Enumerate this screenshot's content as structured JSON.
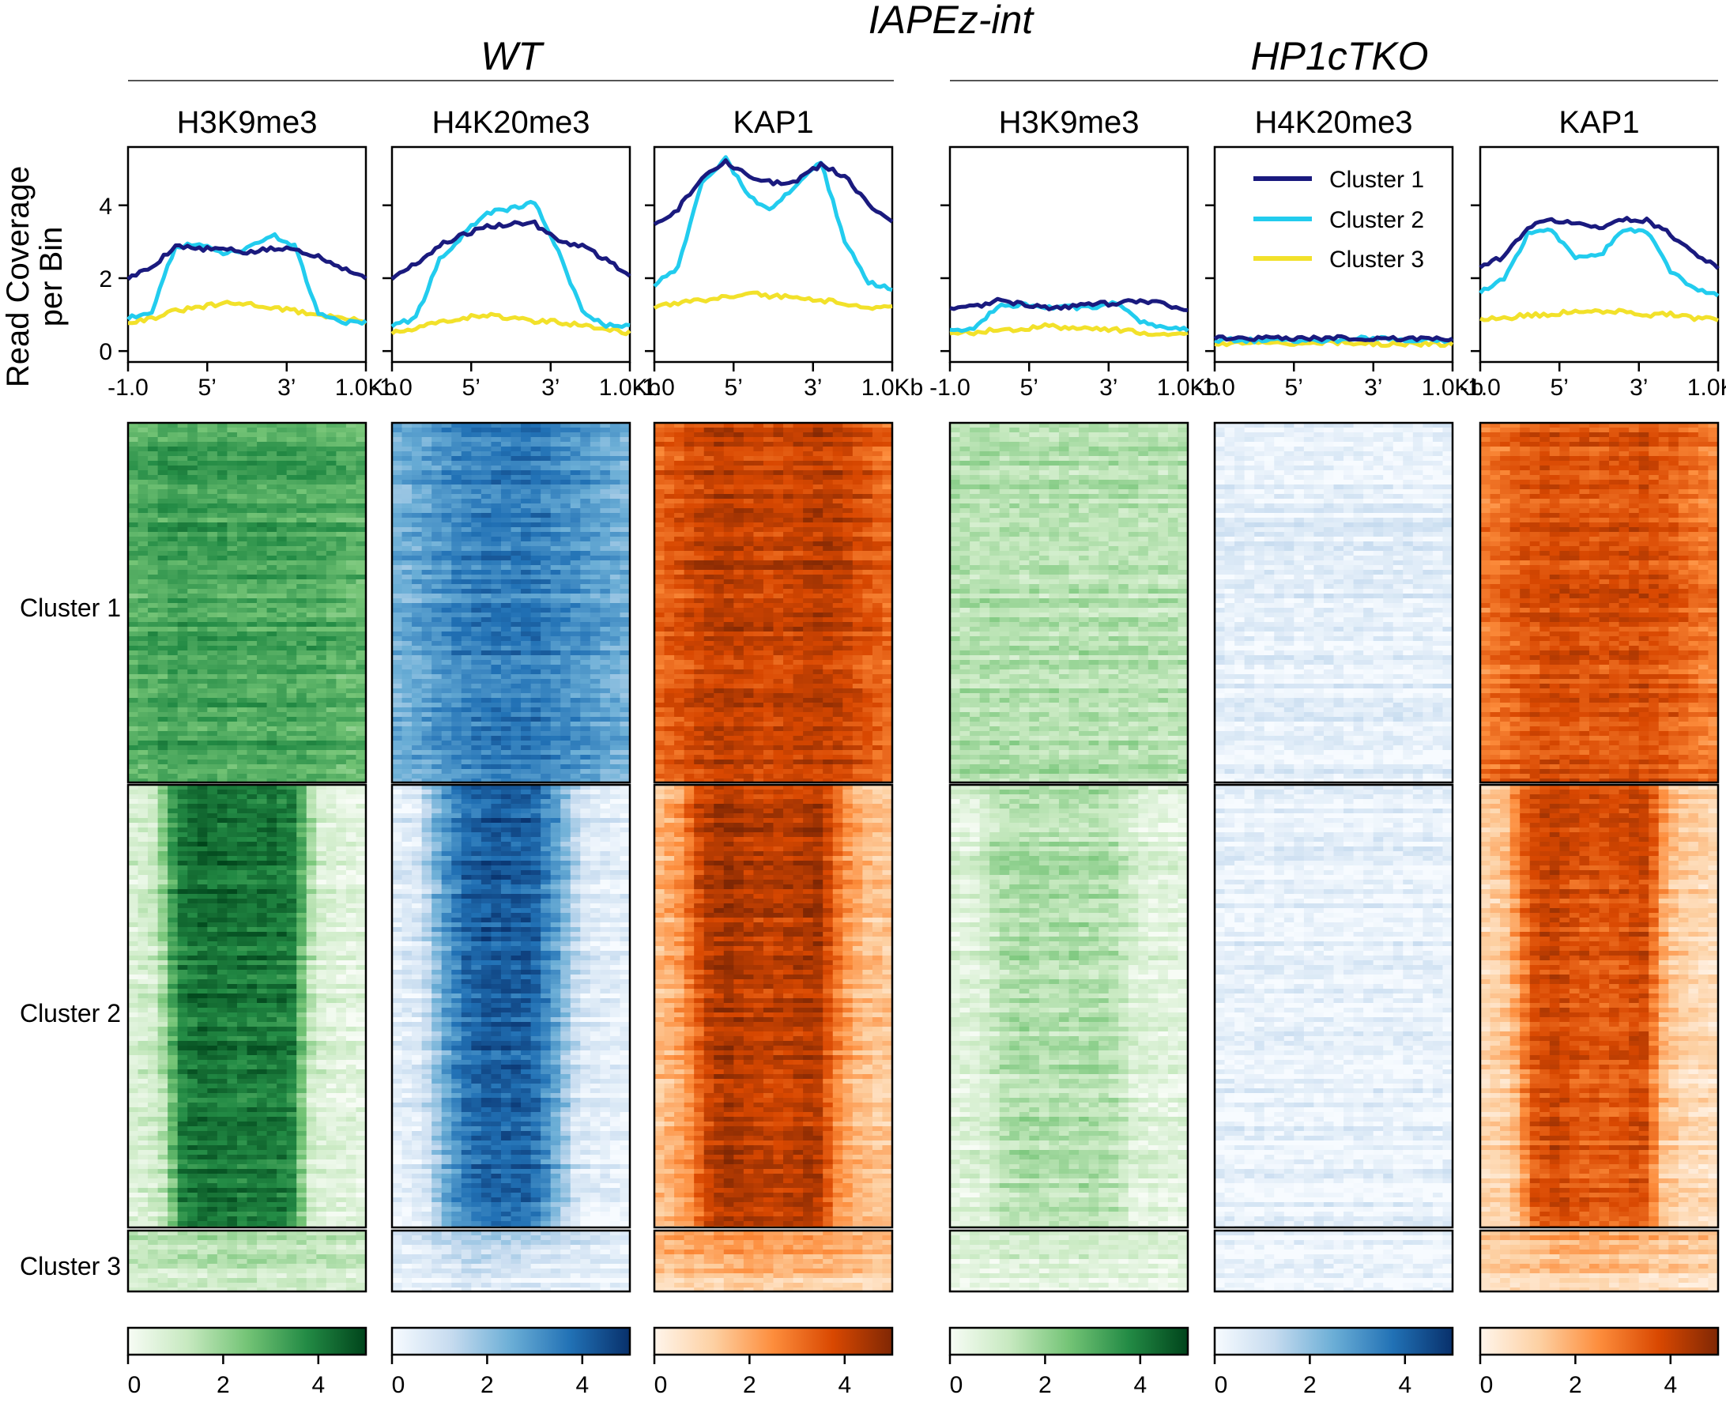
{
  "figure": {
    "title": "IAPEz-int",
    "groups": [
      {
        "name": "WT"
      },
      {
        "name": "HP1cTKO"
      }
    ],
    "ylabel_line1": "Read Coverage",
    "ylabel_line2": "per Bin"
  },
  "legend": {
    "position": "top-right of the HP1cTKO H4K20me3 profile",
    "entries": [
      {
        "label": "Cluster 1",
        "color": "#1a1a7e"
      },
      {
        "label": "Cluster 2",
        "color": "#22ccee"
      },
      {
        "label": "Cluster 3",
        "color": "#f2e12a"
      }
    ]
  },
  "clusters": [
    "Cluster 1",
    "Cluster 2",
    "Cluster 3"
  ],
  "colormaps": {
    "Greens": [
      "#f7fcf5",
      "#c7e9c0",
      "#74c476",
      "#238b45",
      "#00441b"
    ],
    "Blues": [
      "#f7fbff",
      "#c6dbef",
      "#6baed6",
      "#2171b5",
      "#08306b"
    ],
    "Oranges": [
      "#fff5eb",
      "#fdd0a2",
      "#fd8d3c",
      "#d94801",
      "#7f2704"
    ]
  },
  "chart_data": [
    {
      "type": "line",
      "group": "WT",
      "title": "H3K9me3",
      "colormap": "Greens",
      "xticks": [
        "-1.0",
        "5’",
        "3’",
        "1.0Kb"
      ],
      "ylim": [
        -0.3,
        5.6
      ],
      "yticks": [
        0,
        2,
        4
      ],
      "colorbar": {
        "range": [
          0,
          5
        ],
        "ticks": [
          0,
          2,
          4
        ]
      },
      "x": [
        0,
        10,
        20,
        30,
        40,
        50,
        60,
        70,
        80,
        90,
        100
      ],
      "series": [
        {
          "name": "Cluster 1",
          "values": [
            2.0,
            2.3,
            2.9,
            2.8,
            2.8,
            2.7,
            2.8,
            2.8,
            2.6,
            2.3,
            2.0
          ]
        },
        {
          "name": "Cluster 2",
          "values": [
            0.9,
            1.1,
            2.9,
            2.9,
            2.7,
            2.8,
            3.2,
            2.9,
            1.0,
            0.8,
            0.8
          ]
        },
        {
          "name": "Cluster 3",
          "values": [
            0.8,
            0.9,
            1.1,
            1.2,
            1.3,
            1.3,
            1.2,
            1.1,
            1.0,
            0.9,
            0.8
          ]
        }
      ],
      "heatmap_intensity": [
        {
          "name": "Cluster 1",
          "values": [
            0.58,
            0.63,
            0.66,
            0.64,
            0.64,
            0.62,
            0.64,
            0.63,
            0.62,
            0.58,
            0.56
          ]
        },
        {
          "name": "Cluster 2",
          "values": [
            0.15,
            0.22,
            0.8,
            0.88,
            0.85,
            0.83,
            0.85,
            0.8,
            0.18,
            0.12,
            0.1
          ]
        },
        {
          "name": "Cluster 3",
          "values": [
            0.26,
            0.28,
            0.32,
            0.34,
            0.36,
            0.36,
            0.34,
            0.32,
            0.29,
            0.27,
            0.25
          ]
        }
      ]
    },
    {
      "type": "line",
      "group": "WT",
      "title": "H4K20me3",
      "colormap": "Blues",
      "xticks": [
        "-1.0",
        "5’",
        "3’",
        "1.0Kb"
      ],
      "ylim": [
        -0.3,
        5.6
      ],
      "yticks": [
        0,
        2,
        4
      ],
      "colorbar": {
        "range": [
          0,
          5
        ],
        "ticks": [
          0,
          2,
          4
        ]
      },
      "x": [
        0,
        10,
        20,
        30,
        40,
        50,
        60,
        70,
        80,
        90,
        100
      ],
      "series": [
        {
          "name": "Cluster 1",
          "values": [
            2.0,
            2.4,
            2.9,
            3.2,
            3.4,
            3.5,
            3.5,
            3.0,
            2.9,
            2.5,
            2.1
          ]
        },
        {
          "name": "Cluster 2",
          "values": [
            0.7,
            0.9,
            2.5,
            3.2,
            3.8,
            3.9,
            4.1,
            2.7,
            1.1,
            0.7,
            0.7
          ]
        },
        {
          "name": "Cluster 3",
          "values": [
            0.5,
            0.6,
            0.8,
            0.9,
            1.0,
            0.9,
            0.8,
            0.8,
            0.7,
            0.6,
            0.5
          ]
        }
      ],
      "heatmap_intensity": [
        {
          "name": "Cluster 1",
          "values": [
            0.45,
            0.52,
            0.6,
            0.66,
            0.7,
            0.7,
            0.7,
            0.64,
            0.6,
            0.52,
            0.46
          ]
        },
        {
          "name": "Cluster 2",
          "values": [
            0.1,
            0.15,
            0.55,
            0.78,
            0.85,
            0.85,
            0.82,
            0.55,
            0.18,
            0.1,
            0.08
          ]
        },
        {
          "name": "Cluster 3",
          "values": [
            0.12,
            0.16,
            0.24,
            0.3,
            0.32,
            0.3,
            0.26,
            0.22,
            0.18,
            0.14,
            0.12
          ]
        }
      ]
    },
    {
      "type": "line",
      "group": "WT",
      "title": "KAP1",
      "colormap": "Oranges",
      "xticks": [
        "-1.0",
        "5’",
        "3’",
        "1.0Kb"
      ],
      "ylim": [
        -0.3,
        5.6
      ],
      "yticks": [
        0,
        2,
        4
      ],
      "colorbar": {
        "range": [
          0,
          5
        ],
        "ticks": [
          0,
          2,
          4
        ]
      },
      "x": [
        0,
        10,
        20,
        30,
        40,
        50,
        60,
        70,
        80,
        90,
        100
      ],
      "series": [
        {
          "name": "Cluster 1",
          "values": [
            3.5,
            3.9,
            4.8,
            5.2,
            4.8,
            4.6,
            4.7,
            5.1,
            4.8,
            4.0,
            3.5
          ]
        },
        {
          "name": "Cluster 2",
          "values": [
            1.8,
            2.3,
            4.6,
            5.3,
            4.2,
            3.9,
            4.6,
            5.2,
            3.0,
            1.9,
            1.7
          ]
        },
        {
          "name": "Cluster 3",
          "values": [
            1.2,
            1.3,
            1.4,
            1.5,
            1.6,
            1.5,
            1.5,
            1.4,
            1.3,
            1.2,
            1.2
          ]
        }
      ],
      "heatmap_intensity": [
        {
          "name": "Cluster 1",
          "values": [
            0.62,
            0.7,
            0.8,
            0.84,
            0.8,
            0.78,
            0.8,
            0.84,
            0.8,
            0.7,
            0.62
          ]
        },
        {
          "name": "Cluster 2",
          "values": [
            0.32,
            0.45,
            0.82,
            0.92,
            0.85,
            0.82,
            0.85,
            0.9,
            0.5,
            0.32,
            0.28
          ]
        },
        {
          "name": "Cluster 3",
          "values": [
            0.4,
            0.44,
            0.48,
            0.52,
            0.54,
            0.52,
            0.5,
            0.48,
            0.44,
            0.4,
            0.38
          ]
        }
      ]
    },
    {
      "type": "line",
      "group": "HP1cTKO",
      "title": "H3K9me3",
      "colormap": "Greens",
      "xticks": [
        "-1.0",
        "5’",
        "3’",
        "1.0Kb"
      ],
      "ylim": [
        -0.3,
        5.6
      ],
      "yticks": [
        0,
        2,
        4
      ],
      "colorbar": {
        "range": [
          0,
          5
        ],
        "ticks": [
          0,
          2,
          4
        ]
      },
      "x": [
        0,
        10,
        20,
        30,
        40,
        50,
        60,
        70,
        80,
        90,
        100
      ],
      "series": [
        {
          "name": "Cluster 1",
          "values": [
            1.2,
            1.2,
            1.4,
            1.3,
            1.2,
            1.2,
            1.3,
            1.3,
            1.4,
            1.3,
            1.1
          ]
        },
        {
          "name": "Cluster 2",
          "values": [
            0.6,
            0.6,
            1.2,
            1.3,
            1.2,
            1.2,
            1.2,
            1.3,
            0.8,
            0.6,
            0.6
          ]
        },
        {
          "name": "Cluster 3",
          "values": [
            0.5,
            0.5,
            0.6,
            0.6,
            0.7,
            0.6,
            0.6,
            0.6,
            0.5,
            0.5,
            0.5
          ]
        }
      ],
      "heatmap_intensity": [
        {
          "name": "Cluster 1",
          "values": [
            0.3,
            0.3,
            0.31,
            0.3,
            0.3,
            0.3,
            0.3,
            0.3,
            0.3,
            0.29,
            0.28
          ]
        },
        {
          "name": "Cluster 2",
          "values": [
            0.12,
            0.14,
            0.3,
            0.34,
            0.32,
            0.32,
            0.33,
            0.3,
            0.14,
            0.12,
            0.1
          ]
        },
        {
          "name": "Cluster 3",
          "values": [
            0.18,
            0.18,
            0.2,
            0.22,
            0.22,
            0.22,
            0.2,
            0.2,
            0.19,
            0.18,
            0.17
          ]
        }
      ]
    },
    {
      "type": "line",
      "group": "HP1cTKO",
      "title": "H4K20me3",
      "colormap": "Blues",
      "xticks": [
        "-1.0",
        "5’",
        "3’",
        "1.0Kb"
      ],
      "ylim": [
        -0.3,
        5.6
      ],
      "yticks": [
        0,
        2,
        4
      ],
      "colorbar": {
        "range": [
          0,
          5
        ],
        "ticks": [
          0,
          2,
          4
        ]
      },
      "x": [
        0,
        10,
        20,
        30,
        40,
        50,
        60,
        70,
        80,
        90,
        100
      ],
      "series": [
        {
          "name": "Cluster 1",
          "values": [
            0.35,
            0.35,
            0.35,
            0.35,
            0.35,
            0.35,
            0.35,
            0.35,
            0.35,
            0.35,
            0.35
          ]
        },
        {
          "name": "Cluster 2",
          "values": [
            0.3,
            0.3,
            0.3,
            0.3,
            0.3,
            0.3,
            0.35,
            0.35,
            0.3,
            0.3,
            0.3
          ]
        },
        {
          "name": "Cluster 3",
          "values": [
            0.2,
            0.2,
            0.2,
            0.2,
            0.25,
            0.25,
            0.2,
            0.2,
            0.2,
            0.2,
            0.2
          ]
        }
      ],
      "heatmap_intensity": [
        {
          "name": "Cluster 1",
          "values": [
            0.08,
            0.08,
            0.08,
            0.08,
            0.08,
            0.08,
            0.08,
            0.08,
            0.08,
            0.08,
            0.08
          ]
        },
        {
          "name": "Cluster 2",
          "values": [
            0.07,
            0.07,
            0.07,
            0.07,
            0.07,
            0.07,
            0.07,
            0.07,
            0.07,
            0.07,
            0.07
          ]
        },
        {
          "name": "Cluster 3",
          "values": [
            0.05,
            0.05,
            0.06,
            0.06,
            0.07,
            0.07,
            0.06,
            0.06,
            0.05,
            0.05,
            0.05
          ]
        }
      ]
    },
    {
      "type": "line",
      "group": "HP1cTKO",
      "title": "KAP1",
      "colormap": "Oranges",
      "xticks": [
        "-1.0",
        "5’",
        "3’",
        "1.0Kb"
      ],
      "ylim": [
        -0.3,
        5.6
      ],
      "yticks": [
        0,
        2,
        4
      ],
      "colorbar": {
        "range": [
          0,
          5
        ],
        "ticks": [
          0,
          2,
          4
        ]
      },
      "x": [
        0,
        10,
        20,
        30,
        40,
        50,
        60,
        70,
        80,
        90,
        100
      ],
      "series": [
        {
          "name": "Cluster 1",
          "values": [
            2.3,
            2.6,
            3.4,
            3.6,
            3.5,
            3.4,
            3.6,
            3.6,
            3.2,
            2.7,
            2.3
          ]
        },
        {
          "name": "Cluster 2",
          "values": [
            1.6,
            2.0,
            3.2,
            3.3,
            2.6,
            2.6,
            3.3,
            3.3,
            2.2,
            1.7,
            1.5
          ]
        },
        {
          "name": "Cluster 3",
          "values": [
            0.9,
            0.9,
            1.0,
            1.0,
            1.1,
            1.1,
            1.1,
            1.0,
            1.0,
            0.9,
            0.9
          ]
        }
      ],
      "heatmap_intensity": [
        {
          "name": "Cluster 1",
          "values": [
            0.55,
            0.62,
            0.7,
            0.74,
            0.72,
            0.7,
            0.72,
            0.74,
            0.68,
            0.6,
            0.54
          ]
        },
        {
          "name": "Cluster 2",
          "values": [
            0.2,
            0.28,
            0.72,
            0.8,
            0.72,
            0.7,
            0.72,
            0.78,
            0.3,
            0.2,
            0.16
          ]
        },
        {
          "name": "Cluster 3",
          "values": [
            0.3,
            0.32,
            0.36,
            0.4,
            0.42,
            0.42,
            0.4,
            0.36,
            0.32,
            0.3,
            0.28
          ]
        }
      ]
    }
  ]
}
